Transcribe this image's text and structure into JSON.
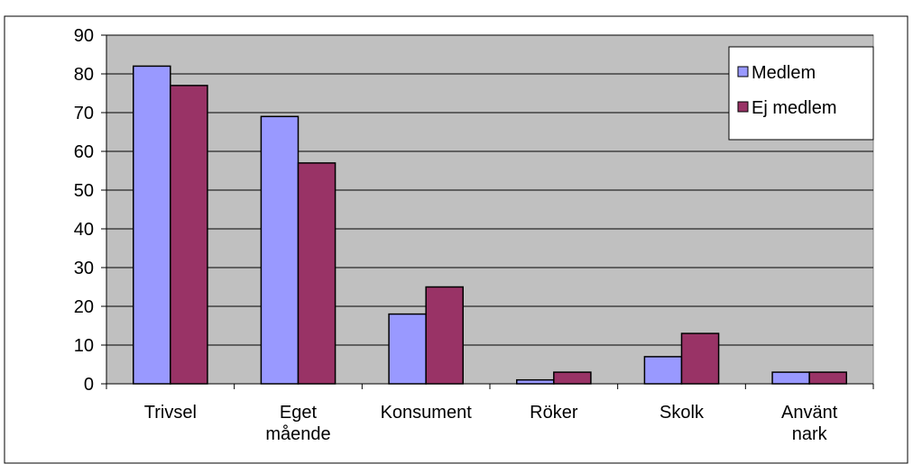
{
  "chart_data": {
    "type": "bar",
    "categories": [
      "Trivsel",
      "Eget mående",
      "Konsument",
      "Röker",
      "Skolk",
      "Använt nark"
    ],
    "series": [
      {
        "name": "Medlem",
        "color": "#9999ff",
        "values": [
          82,
          69,
          18,
          1,
          7,
          3
        ]
      },
      {
        "name": "Ej medlem",
        "color": "#993366",
        "values": [
          77,
          57,
          25,
          3,
          13,
          3
        ]
      }
    ],
    "ylim": [
      0,
      90
    ],
    "yticks": [
      0,
      10,
      20,
      30,
      40,
      50,
      60,
      70,
      80,
      90
    ],
    "grid": true,
    "legend": "top-right",
    "plot_background": "#c0c0c0"
  }
}
